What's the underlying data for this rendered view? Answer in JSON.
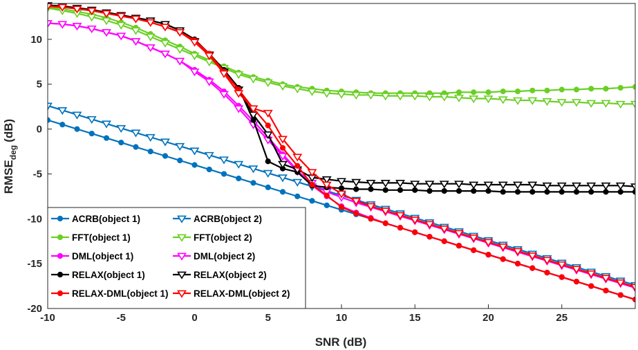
{
  "chart_data": {
    "type": "line",
    "title": "",
    "xlabel": "SNR (dB)",
    "ylabel": "RMSE",
    "ylabel_subscript": "deg",
    "ylabel_unit": "(dB)",
    "xlim": [
      -10,
      30
    ],
    "ylim": [
      -20,
      14
    ],
    "xticks": [
      -10,
      -5,
      0,
      5,
      10,
      15,
      20,
      25
    ],
    "yticks": [
      -20,
      -15,
      -10,
      -5,
      0,
      5,
      10
    ],
    "grid": false,
    "legend_position": "bottom-left",
    "x": [
      -10,
      -9,
      -8,
      -7,
      -6,
      -5,
      -4,
      -3,
      -2,
      -1,
      0,
      1,
      2,
      3,
      4,
      5,
      6,
      7,
      8,
      9,
      10,
      11,
      12,
      13,
      14,
      15,
      16,
      17,
      18,
      19,
      20,
      21,
      22,
      23,
      24,
      25,
      26,
      27,
      28,
      29,
      30
    ],
    "series": [
      {
        "name": "ACRB(object 1)",
        "color": "#0072BD",
        "marker": "circle",
        "values": [
          1.0,
          0.5,
          0.0,
          -0.5,
          -1.0,
          -1.5,
          -2.0,
          -2.5,
          -3.0,
          -3.5,
          -4.0,
          -4.5,
          -5.0,
          -5.5,
          -6.0,
          -6.5,
          -7.0,
          -7.5,
          -8.0,
          -8.5,
          -9.0,
          -9.5,
          -10.0,
          -10.5,
          -11.0,
          -11.5,
          -12.0,
          -12.5,
          -13.0,
          -13.5,
          -14.0,
          -14.5,
          -15.0,
          -15.5,
          -16.0,
          -16.5,
          -17.0,
          -17.5,
          -18.0,
          -18.5,
          -19.0
        ]
      },
      {
        "name": "ACRB(object 2)",
        "color": "#0072BD",
        "marker": "triangle-down",
        "values": [
          2.6,
          2.1,
          1.6,
          1.1,
          0.6,
          0.1,
          -0.4,
          -0.9,
          -1.4,
          -1.9,
          -2.4,
          -2.9,
          -3.4,
          -3.9,
          -4.4,
          -4.9,
          -5.4,
          -5.9,
          -6.4,
          -6.9,
          -7.4,
          -7.9,
          -8.4,
          -8.9,
          -9.4,
          -9.9,
          -10.4,
          -10.9,
          -11.4,
          -11.9,
          -12.4,
          -12.9,
          -13.4,
          -13.9,
          -14.4,
          -14.9,
          -15.4,
          -15.9,
          -16.4,
          -16.9,
          -17.4
        ]
      },
      {
        "name": "FFT(object 1)",
        "color": "#6ACF24",
        "marker": "circle",
        "values": [
          13.6,
          13.4,
          13.1,
          12.8,
          12.4,
          11.9,
          11.3,
          10.6,
          9.9,
          9.2,
          8.4,
          7.7,
          7.0,
          6.3,
          5.8,
          5.4,
          5.0,
          4.7,
          4.5,
          4.3,
          4.2,
          4.1,
          4.0,
          4.0,
          4.0,
          4.0,
          4.0,
          4.0,
          4.1,
          4.1,
          4.1,
          4.2,
          4.2,
          4.3,
          4.3,
          4.4,
          4.4,
          4.5,
          4.5,
          4.6,
          4.7
        ]
      },
      {
        "name": "FFT(object 2)",
        "color": "#6ACF24",
        "marker": "triangle-down",
        "values": [
          13.5,
          13.2,
          12.9,
          12.5,
          12.1,
          11.6,
          11.0,
          10.3,
          9.6,
          8.9,
          8.2,
          7.5,
          6.8,
          6.1,
          5.6,
          5.2,
          4.8,
          4.5,
          4.2,
          4.0,
          3.9,
          3.8,
          3.8,
          3.7,
          3.7,
          3.7,
          3.6,
          3.6,
          3.5,
          3.4,
          3.4,
          3.3,
          3.2,
          3.2,
          3.1,
          3.0,
          3.0,
          2.9,
          2.9,
          2.8,
          2.8
        ]
      },
      {
        "name": "DML(object 1)",
        "color": "#FF00FF",
        "marker": "circle",
        "values": [
          11.8,
          11.7,
          11.5,
          11.2,
          10.8,
          10.4,
          9.8,
          9.1,
          8.4,
          7.6,
          6.6,
          5.5,
          4.2,
          2.6,
          0.9,
          -0.9,
          -2.8,
          -4.6,
          -6.3,
          -7.5,
          -8.6,
          -9.3,
          -9.9,
          -10.5,
          -11.0,
          -11.5,
          -12.0,
          -12.5,
          -13.0,
          -13.5,
          -14.0,
          -14.5,
          -15.0,
          -15.5,
          -16.0,
          -16.5,
          -17.0,
          -17.5,
          -18.0,
          -18.5,
          -19.0
        ]
      },
      {
        "name": "DML(object 2)",
        "color": "#FF00FF",
        "marker": "triangle-down",
        "values": [
          11.8,
          11.7,
          11.5,
          11.2,
          10.8,
          10.4,
          9.8,
          9.1,
          8.4,
          7.6,
          6.4,
          5.3,
          3.9,
          2.3,
          0.5,
          -1.2,
          -3.0,
          -4.7,
          -6.0,
          -7.0,
          -7.6,
          -8.2,
          -8.7,
          -9.2,
          -9.7,
          -10.2,
          -10.7,
          -11.2,
          -11.7,
          -12.2,
          -12.7,
          -13.2,
          -13.7,
          -14.2,
          -14.7,
          -15.2,
          -15.7,
          -16.2,
          -16.7,
          -17.2,
          -17.7
        ]
      },
      {
        "name": "RELAX(object 1)",
        "color": "#000000",
        "marker": "circle",
        "values": [
          13.8,
          13.7,
          13.5,
          13.3,
          13.0,
          12.7,
          12.4,
          12.1,
          11.7,
          11.0,
          10.0,
          8.4,
          6.6,
          4.6,
          1.0,
          -3.6,
          -4.4,
          -4.8,
          -6.3,
          -6.5,
          -6.6,
          -6.7,
          -6.7,
          -6.8,
          -6.8,
          -6.8,
          -6.9,
          -6.9,
          -6.9,
          -6.9,
          -6.9,
          -7.0,
          -7.0,
          -7.0,
          -7.0,
          -7.0,
          -7.0,
          -7.0,
          -7.0,
          -7.0,
          -7.0
        ]
      },
      {
        "name": "RELAX(object 2)",
        "color": "#000000",
        "marker": "triangle-down",
        "values": [
          13.8,
          13.7,
          13.5,
          13.3,
          13.0,
          12.7,
          12.4,
          12.1,
          11.7,
          11.0,
          9.8,
          8.3,
          6.4,
          4.4,
          1.6,
          -0.6,
          -3.9,
          -4.5,
          -5.4,
          -5.6,
          -5.8,
          -5.9,
          -6.0,
          -6.0,
          -6.0,
          -6.1,
          -6.1,
          -6.1,
          -6.1,
          -6.2,
          -6.2,
          -6.2,
          -6.2,
          -6.2,
          -6.3,
          -6.3,
          -6.3,
          -6.3,
          -6.3,
          -6.3,
          -6.4
        ]
      },
      {
        "name": "RELAX-DML(object 1)",
        "color": "#FF0000",
        "marker": "circle",
        "values": [
          13.7,
          13.6,
          13.4,
          13.2,
          12.9,
          12.6,
          12.3,
          11.9,
          11.4,
          10.8,
          9.9,
          8.4,
          6.4,
          4.4,
          2.3,
          0.4,
          -2.1,
          -4.1,
          -6.2,
          -7.4,
          -8.7,
          -9.4,
          -10.0,
          -10.5,
          -11.0,
          -11.5,
          -12.0,
          -12.5,
          -13.0,
          -13.5,
          -14.0,
          -14.5,
          -15.0,
          -15.5,
          -16.0,
          -16.5,
          -17.0,
          -17.5,
          -18.0,
          -18.5,
          -19.0
        ]
      },
      {
        "name": "RELAX-DML(object 2)",
        "color": "#FF0000",
        "marker": "triangle-down",
        "values": [
          13.7,
          13.6,
          13.4,
          13.2,
          12.9,
          12.6,
          12.3,
          11.9,
          11.4,
          10.8,
          9.7,
          8.2,
          6.2,
          4.0,
          2.3,
          1.8,
          -1.1,
          -3.1,
          -4.8,
          -6.2,
          -7.2,
          -8.0,
          -8.6,
          -9.1,
          -9.6,
          -10.1,
          -10.6,
          -11.1,
          -11.6,
          -12.1,
          -12.6,
          -13.1,
          -13.6,
          -14.1,
          -14.6,
          -15.1,
          -15.6,
          -16.1,
          -16.6,
          -17.1,
          -17.6
        ]
      }
    ]
  }
}
